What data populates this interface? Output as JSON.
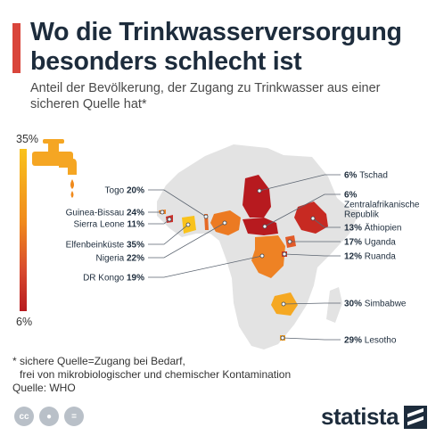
{
  "header": {
    "title": "Wo die Trinkwasserversorgung besonders schlecht ist",
    "subtitle": "Anteil der Bevölkerung, der Zugang zu Trinkwasser aus einer sicheren Quelle hat*"
  },
  "legend": {
    "max_label": "35%",
    "min_label": "6%",
    "max_color": "#f9c21b",
    "min_color": "#b71a1f",
    "icon": "water-tap-icon"
  },
  "chart_data": {
    "type": "choropleth-map",
    "unit": "%",
    "scale": [
      6,
      35
    ],
    "entries": [
      {
        "country": "Togo",
        "value": 20,
        "label": "Togo 20%"
      },
      {
        "country": "Guinea-Bissau",
        "value": 24,
        "label": "Guinea-Bissau 24%"
      },
      {
        "country": "Sierra Leone",
        "value": 11,
        "label": "Sierra Leone 11%"
      },
      {
        "country": "Elfenbeinküste",
        "value": 35,
        "label": "Elfenbeinküste 35%"
      },
      {
        "country": "Nigeria",
        "value": 22,
        "label": "Nigeria 22%"
      },
      {
        "country": "DR Kongo",
        "value": 19,
        "label": "DR Kongo 19%"
      },
      {
        "country": "Tschad",
        "value": 6,
        "label": "6% Tschad"
      },
      {
        "country": "Zentralafrikanische Republik",
        "value": 6,
        "label": "6% Zentralafrikanische Republik"
      },
      {
        "country": "Äthiopien",
        "value": 13,
        "label": "13% Äthiopien"
      },
      {
        "country": "Uganda",
        "value": 17,
        "label": "17% Uganda"
      },
      {
        "country": "Ruanda",
        "value": 12,
        "label": "12% Ruanda"
      },
      {
        "country": "Simbabwe",
        "value": 30,
        "label": "30% Simbabwe"
      },
      {
        "country": "Lesotho",
        "value": 29,
        "label": "29% Lesotho"
      }
    ]
  },
  "footnote": {
    "line1": "* sichere Quelle=Zugang bei Bedarf,",
    "line2": "frei von mikrobiologischer und chemischer Kontamination",
    "source": "Quelle: WHO"
  },
  "branding": {
    "name": "statista",
    "icons": [
      "cc-icon",
      "person-icon",
      "equals-icon"
    ]
  }
}
